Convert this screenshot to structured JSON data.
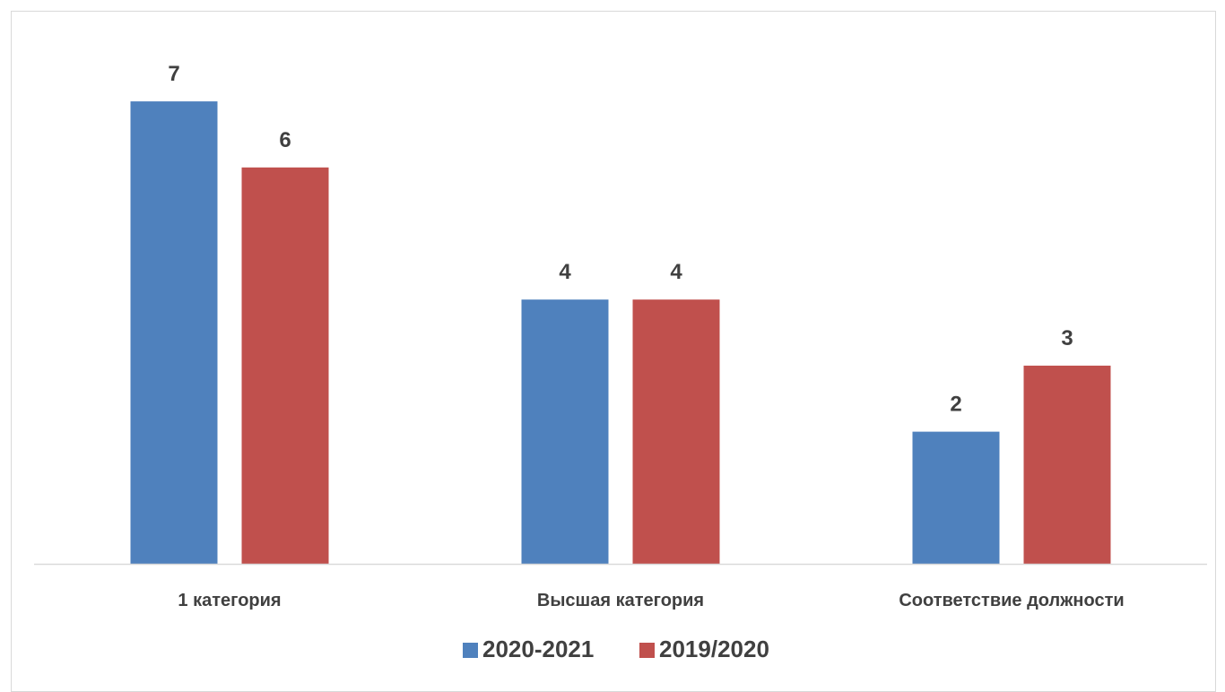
{
  "chart_data": {
    "type": "bar",
    "title": "",
    "xlabel": "",
    "ylabel": "",
    "categories": [
      "1 категория",
      "Высшая категория",
      "Соответствие должности"
    ],
    "series": [
      {
        "name": "2020-2021",
        "values": [
          7,
          4,
          2
        ],
        "color": "#4f81bd"
      },
      {
        "name": "2019/2020",
        "values": [
          6,
          4,
          3
        ],
        "color": "#c0504d"
      }
    ],
    "ylim": [
      0,
      8.4
    ],
    "grid": false,
    "legend": "bottom",
    "data_labels": true
  }
}
